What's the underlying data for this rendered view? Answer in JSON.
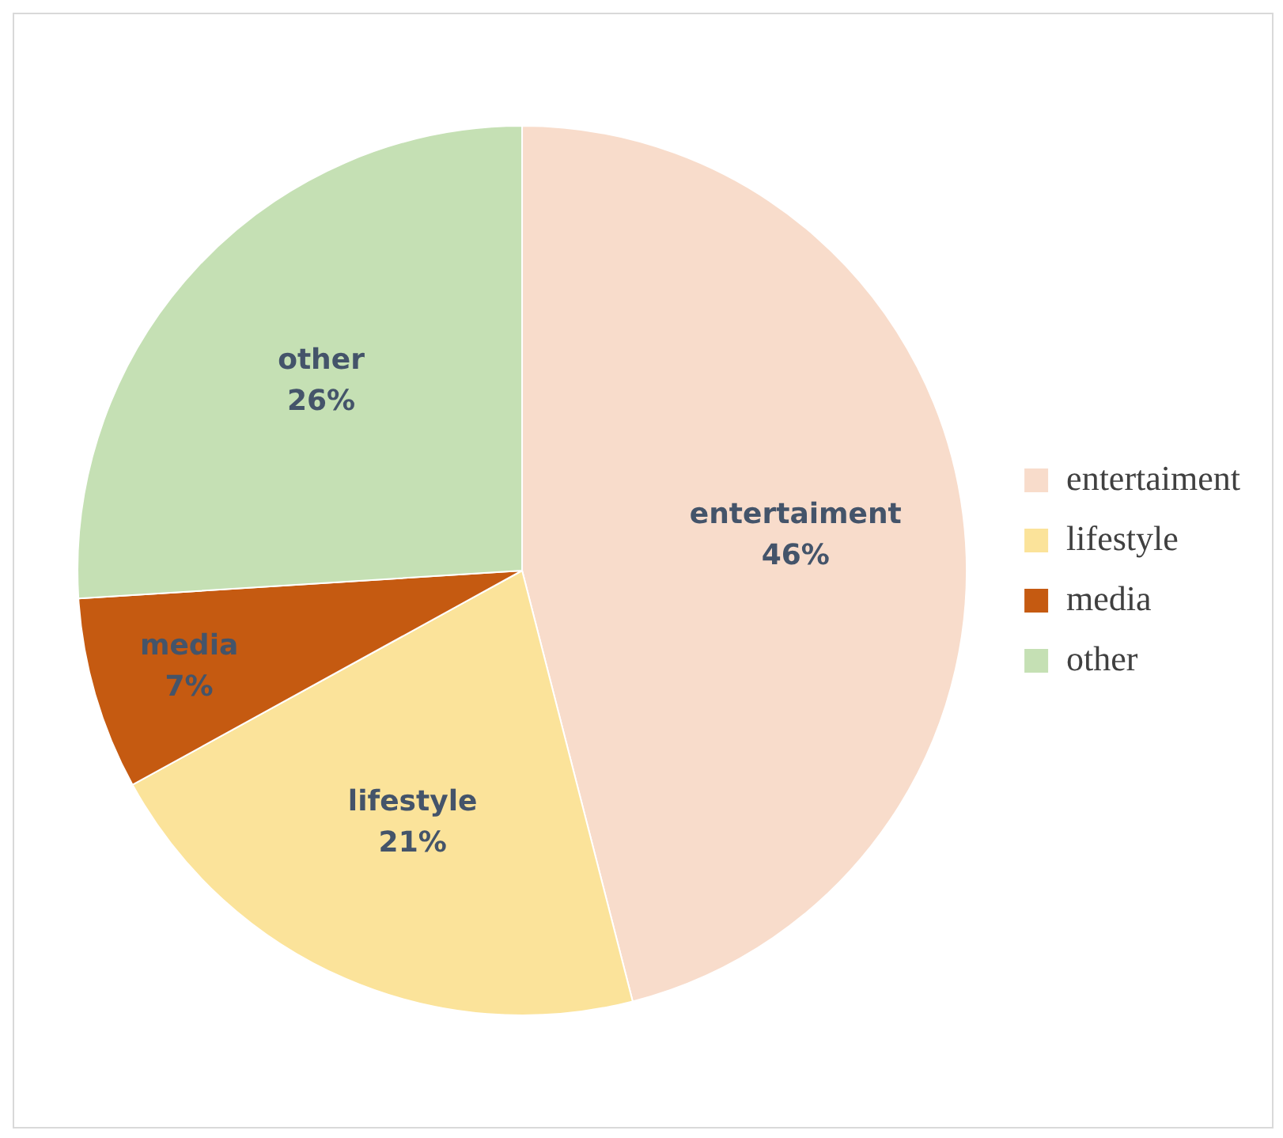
{
  "chart_data": {
    "type": "pie",
    "categories": [
      "entertaiment",
      "lifestyle",
      "media",
      "other"
    ],
    "values": [
      46,
      21,
      7,
      26
    ],
    "colors": [
      "#f8dccb",
      "#fbe39a",
      "#c55a11",
      "#c5e0b4"
    ],
    "value_labels": [
      "46%",
      "21%",
      "7%",
      "26%"
    ],
    "legend": "right"
  }
}
